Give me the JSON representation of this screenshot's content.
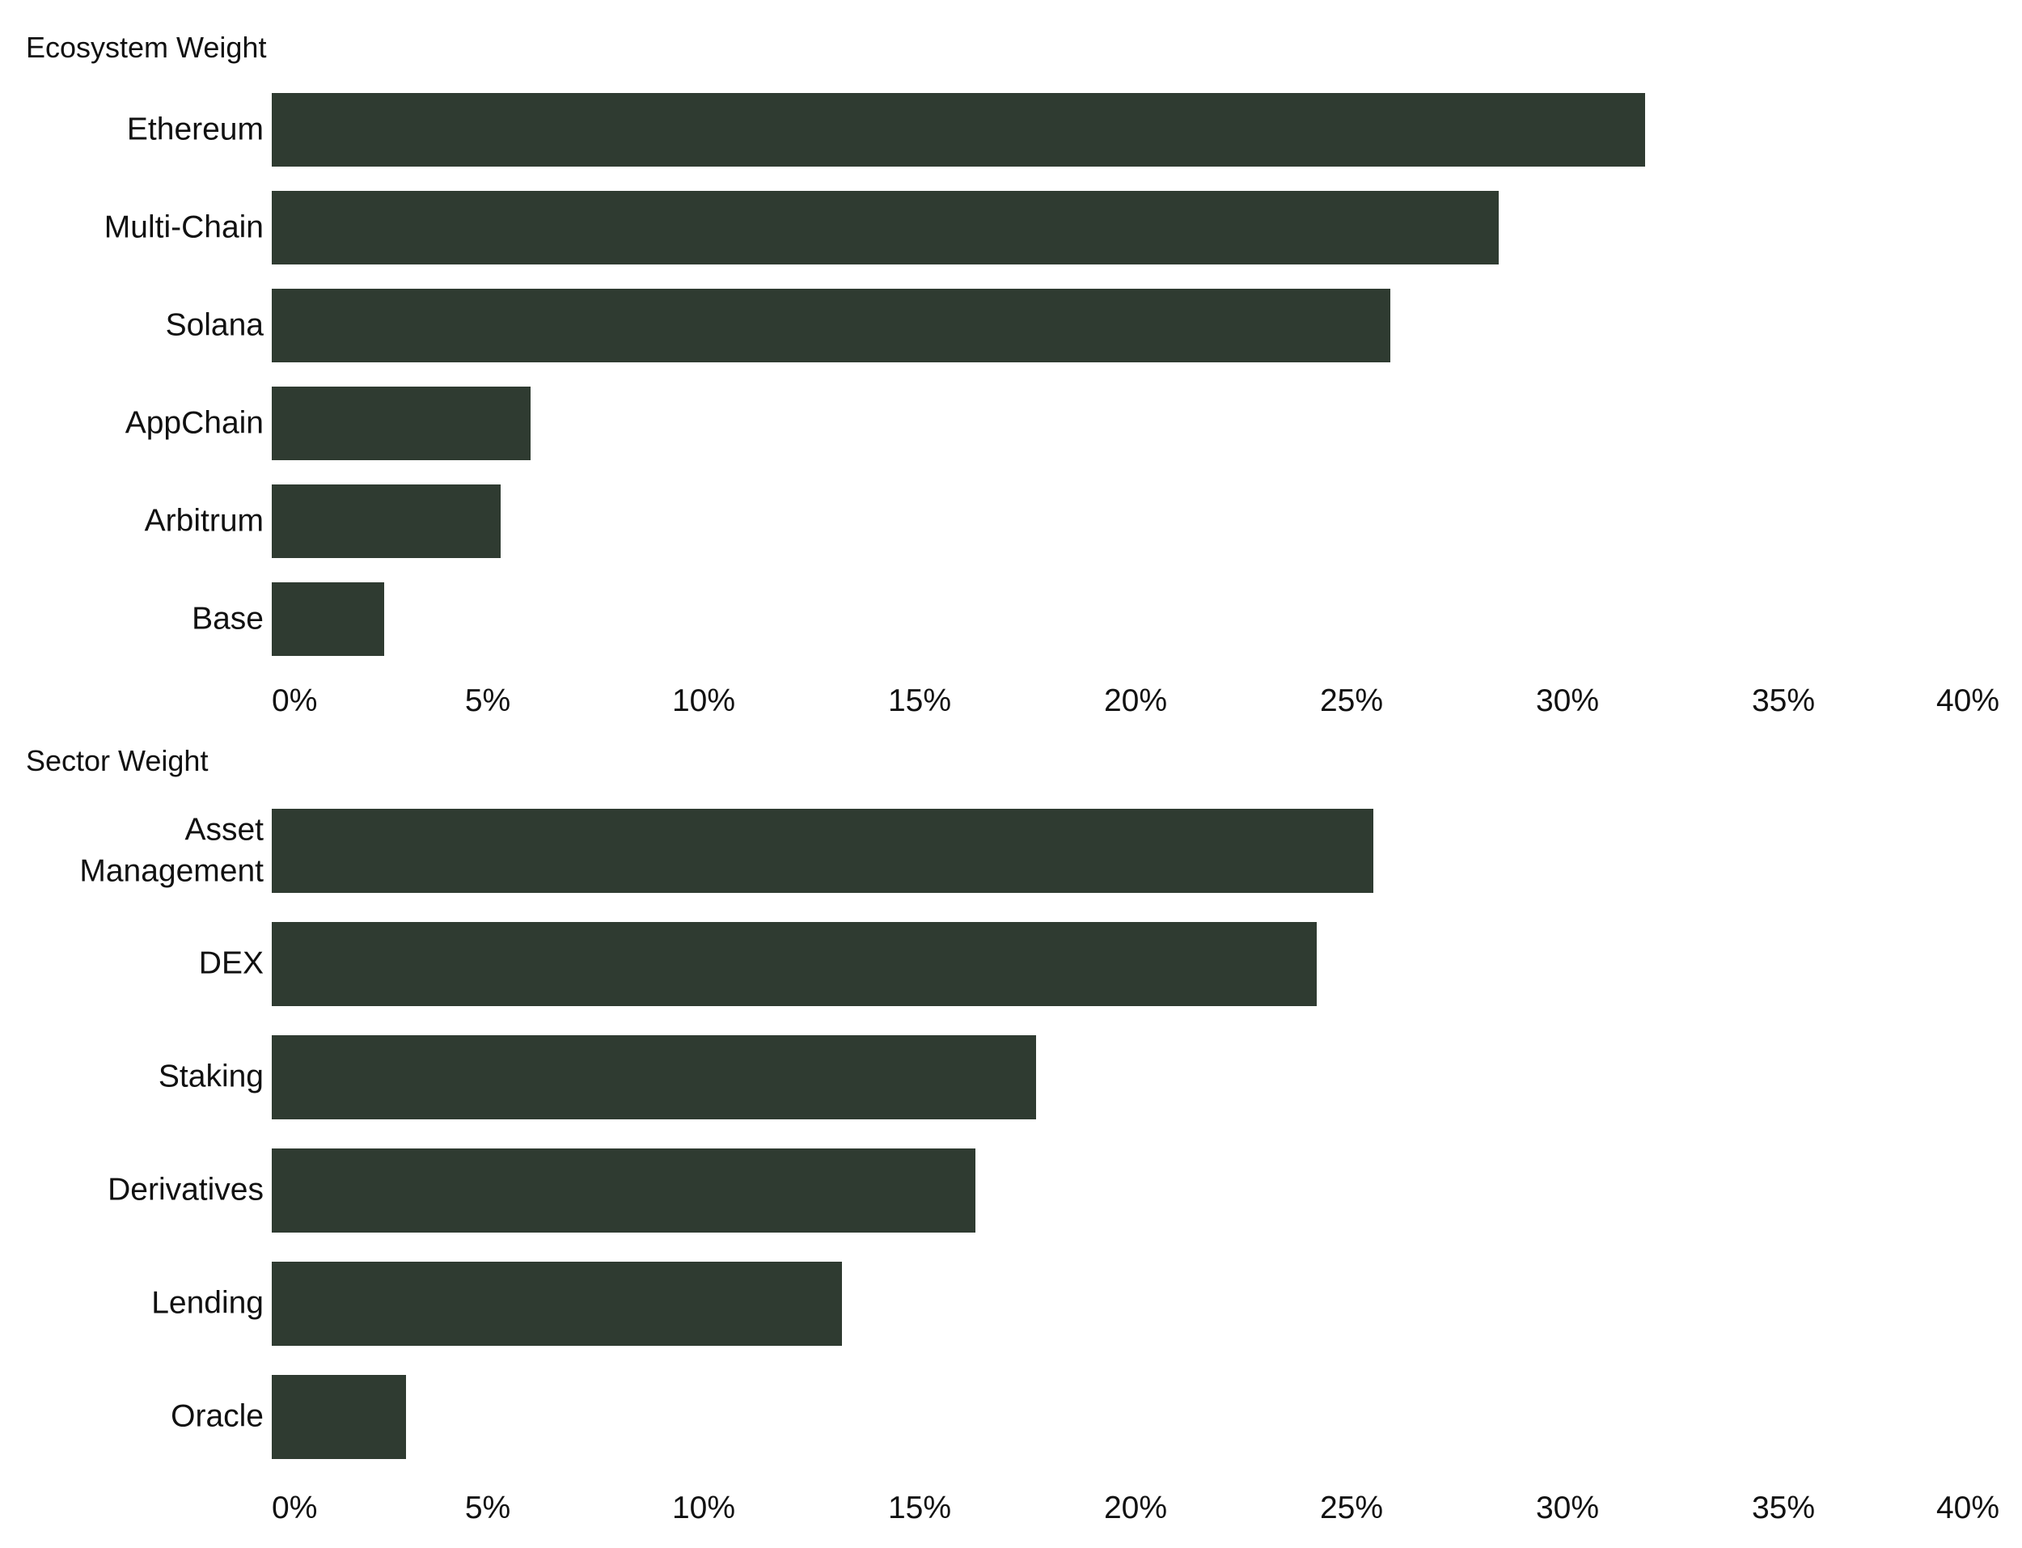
{
  "chart_data": [
    {
      "type": "bar",
      "orientation": "horizontal",
      "title": "Ecosystem Weight",
      "categories": [
        "Ethereum",
        "Multi-Chain",
        "Solana",
        "AppChain",
        "Arbitrum",
        "Base"
      ],
      "values": [
        31.8,
        28.4,
        25.9,
        6.0,
        5.3,
        2.6
      ],
      "color": "#2f3b31",
      "xlim": [
        0,
        40
      ],
      "xticks": [
        {
          "value": 0,
          "label": "0%"
        },
        {
          "value": 5,
          "label": "5%"
        },
        {
          "value": 10,
          "label": "10%"
        },
        {
          "value": 15,
          "label": "15%"
        },
        {
          "value": 20,
          "label": "20%"
        },
        {
          "value": 25,
          "label": "25%"
        },
        {
          "value": 30,
          "label": "30%"
        },
        {
          "value": 35,
          "label": "35%"
        },
        {
          "value": 40,
          "label": "40%"
        }
      ]
    },
    {
      "type": "bar",
      "orientation": "horizontal",
      "title": "Sector Weight",
      "categories": [
        "Asset Management",
        "DEX",
        "Staking",
        "Derivatives",
        "Lending",
        "Oracle"
      ],
      "values": [
        25.5,
        24.2,
        17.7,
        16.3,
        13.2,
        3.1
      ],
      "color": "#2f3b31",
      "xlim": [
        0,
        40
      ],
      "xticks": [
        {
          "value": 0,
          "label": "0%"
        },
        {
          "value": 5,
          "label": "5%"
        },
        {
          "value": 10,
          "label": "10%"
        },
        {
          "value": 15,
          "label": "15%"
        },
        {
          "value": 20,
          "label": "20%"
        },
        {
          "value": 25,
          "label": "25%"
        },
        {
          "value": 30,
          "label": "30%"
        },
        {
          "value": 35,
          "label": "35%"
        },
        {
          "value": 40,
          "label": "40%"
        }
      ]
    }
  ]
}
